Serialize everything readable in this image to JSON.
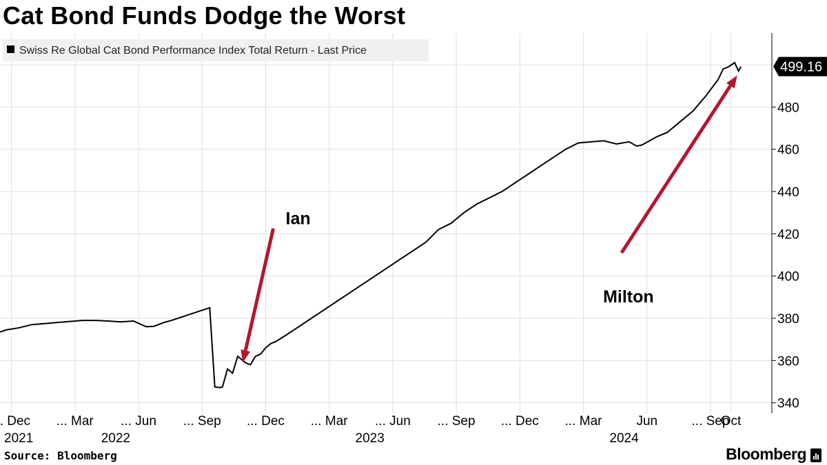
{
  "title": "Cat Bond Funds Dodge the Worst",
  "source": "Source: Bloomberg",
  "brand": "Bloomberg",
  "colors": {
    "line": "#000000",
    "arrow": "#b3172e",
    "grid": "#e0e0e0",
    "legend_bg": "#f0f0f0"
  },
  "chart_data": {
    "type": "line",
    "legend": "Swiss Re Global Cat Bond Performance Index Total Return - Last Price",
    "last_value_label": "499.16",
    "ylim": [
      335,
      515
    ],
    "xlim": [
      2021.875,
      2024.83
    ],
    "yticks": [
      340,
      360,
      380,
      400,
      420,
      440,
      460,
      480
    ],
    "xticks": [
      {
        "x": 2021.92,
        "label": "... Dec"
      },
      {
        "x": 2022.17,
        "label": "... Mar"
      },
      {
        "x": 2022.42,
        "label": "... Jun"
      },
      {
        "x": 2022.67,
        "label": "... Sep"
      },
      {
        "x": 2022.92,
        "label": "... Dec"
      },
      {
        "x": 2023.17,
        "label": "... Mar"
      },
      {
        "x": 2023.42,
        "label": "... Jun"
      },
      {
        "x": 2023.67,
        "label": "... Sep"
      },
      {
        "x": 2023.92,
        "label": "... Dec"
      },
      {
        "x": 2024.17,
        "label": "... Mar"
      },
      {
        "x": 2024.42,
        "label": "Jun"
      },
      {
        "x": 2024.67,
        "label": "... Sep"
      },
      {
        "x": 2024.75,
        "label": "Oct"
      }
    ],
    "year_labels": [
      {
        "x": 2021.875,
        "label": "2021"
      },
      {
        "x": 2022.33,
        "label": "2022"
      },
      {
        "x": 2023.33,
        "label": "2023"
      },
      {
        "x": 2024.33,
        "label": "2024"
      }
    ],
    "series": [
      {
        "name": "Swiss Re Global Cat Bond Performance Index Total Return - Last Price",
        "x": [
          2021.875,
          2021.9,
          2021.95,
          2022.0,
          2022.05,
          2022.1,
          2022.15,
          2022.2,
          2022.25,
          2022.3,
          2022.35,
          2022.4,
          2022.45,
          2022.48,
          2022.52,
          2022.55,
          2022.6,
          2022.65,
          2022.7,
          2022.72,
          2022.74,
          2022.75,
          2022.77,
          2022.79,
          2022.81,
          2022.84,
          2022.86,
          2022.88,
          2022.9,
          2022.92,
          2022.94,
          2022.96,
          2023.0,
          2023.05,
          2023.1,
          2023.15,
          2023.2,
          2023.25,
          2023.3,
          2023.35,
          2023.4,
          2023.45,
          2023.5,
          2023.55,
          2023.6,
          2023.65,
          2023.7,
          2023.75,
          2023.8,
          2023.85,
          2023.9,
          2023.95,
          2024.0,
          2024.05,
          2024.1,
          2024.15,
          2024.2,
          2024.25,
          2024.3,
          2024.35,
          2024.38,
          2024.4,
          2024.43,
          2024.46,
          2024.5,
          2024.55,
          2024.6,
          2024.65,
          2024.7,
          2024.72,
          2024.74,
          2024.765,
          2024.78,
          2024.79
        ],
        "values": [
          373.5,
          374.5,
          375.5,
          377,
          377.5,
          378,
          378.5,
          379,
          379,
          378.7,
          378.3,
          378.7,
          376,
          376.2,
          378,
          379,
          381,
          383,
          385,
          347.5,
          347.2,
          347.5,
          356,
          354,
          362,
          359,
          358,
          362,
          363,
          366,
          368,
          369,
          372,
          376,
          380,
          384,
          388,
          392,
          396,
          400,
          404,
          408,
          412,
          416,
          422,
          425,
          430,
          434,
          437,
          440,
          444,
          448,
          452,
          456,
          460,
          463,
          463.5,
          464,
          462.5,
          463.5,
          461.5,
          462,
          464,
          466,
          468,
          473,
          478,
          485,
          493,
          498,
          499,
          501,
          497,
          499.16
        ]
      }
    ],
    "annotations": [
      {
        "label": "Ian",
        "from": [
          2022.95,
          422.5
        ],
        "to": [
          2022.83,
          359
        ]
      },
      {
        "label": "Milton",
        "from": [
          2024.32,
          411
        ],
        "to": [
          2024.775,
          495
        ]
      }
    ]
  }
}
